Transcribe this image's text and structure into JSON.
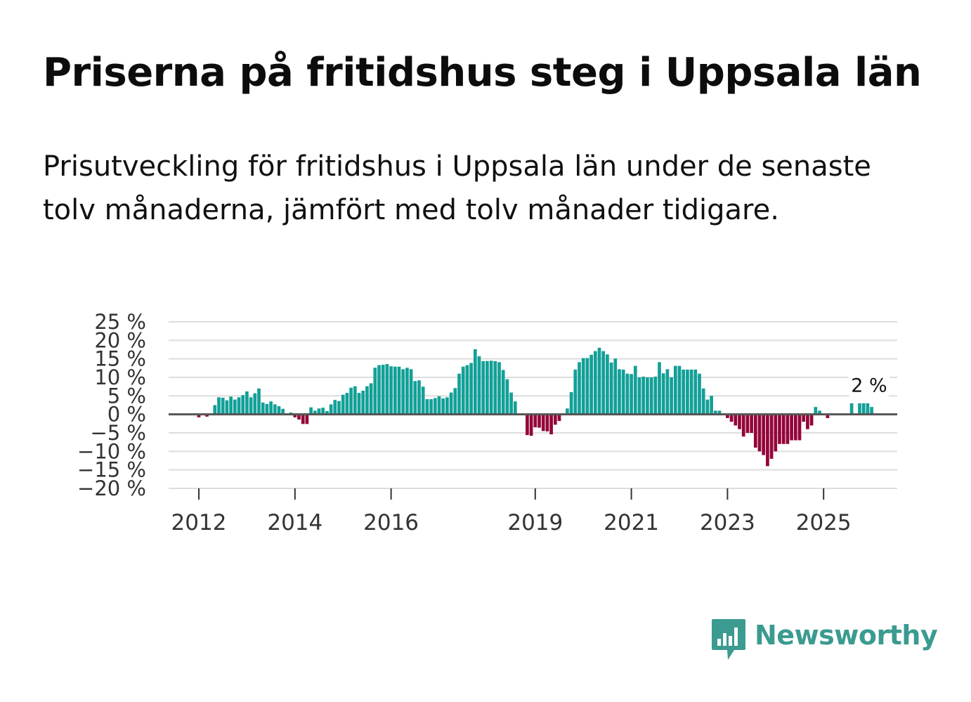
{
  "title": "Priserna på fritidshus steg i Uppsala län",
  "subtitle": "Prisutveckling för fritidshus i Uppsala län under de senaste tolv månaderna, jämfört med tolv månader tidigare.",
  "brand": {
    "name": "Newsworthy",
    "icon": "newsworthy-logo-icon",
    "color": "#3b9b90"
  },
  "colors": {
    "positive": "#12a097",
    "negative": "#93053a",
    "zero_line": "#555555",
    "grid": "#dddddd"
  },
  "chart_data": {
    "type": "bar",
    "title": "Priserna på fritidshus steg i Uppsala län",
    "xlabel": "",
    "ylabel": "",
    "ylim": [
      -20,
      25
    ],
    "y_ticks": [
      25,
      20,
      15,
      10,
      5,
      0,
      -5,
      -10,
      -15,
      -20
    ],
    "y_tick_labels": [
      "25 %",
      "20 %",
      "15 %",
      "10 %",
      "5 %",
      "0 %",
      "−5 %",
      "−10 %",
      "−15 %",
      "−20 %"
    ],
    "x_tick_labels": [
      {
        "label": "2012",
        "index": 9
      },
      {
        "label": "2014",
        "index": 33
      },
      {
        "label": "2016",
        "index": 57
      },
      {
        "label": "2019",
        "index": 93
      },
      {
        "label": "2021",
        "index": 117
      },
      {
        "label": "2023",
        "index": 141
      },
      {
        "label": "2025",
        "index": 165
      }
    ],
    "series": [
      {
        "name": "Prisutveckling",
        "start": "2011-01",
        "frequency": "monthly",
        "values": [
          null,
          null,
          null,
          null,
          null,
          null,
          null,
          null,
          0,
          -0.8,
          0,
          -0.6,
          0,
          2.5,
          4.6,
          4.5,
          3.8,
          4.8,
          4,
          4.6,
          5.2,
          6.2,
          4.6,
          5.7,
          7,
          3.2,
          2.8,
          3.5,
          2.7,
          2.2,
          1.5,
          0,
          0.5,
          -0.8,
          -1.4,
          -2.6,
          -2.6,
          1.9,
          1,
          1.6,
          1.8,
          0.9,
          2.7,
          3.9,
          3.6,
          5.3,
          5.8,
          7.2,
          7.6,
          5.8,
          6.4,
          7.6,
          8.4,
          12.6,
          13.3,
          13.4,
          13.6,
          13,
          12.9,
          12.9,
          12.2,
          12.6,
          12.2,
          9,
          9.2,
          7.5,
          4.1,
          4.1,
          4.4,
          4.9,
          4.3,
          4.6,
          5.9,
          7.1,
          11,
          12.9,
          13.3,
          13.9,
          17.6,
          15.7,
          14.4,
          14.4,
          14.5,
          14.4,
          14.1,
          12,
          9.5,
          5.9,
          3.5,
          0,
          0,
          -5.6,
          -5.8,
          -3.5,
          -3.6,
          -4.5,
          -4.6,
          -5.4,
          -2.8,
          -1.8,
          0,
          1.6,
          6,
          12.1,
          14.1,
          15.2,
          15.2,
          16.1,
          17.1,
          18,
          17.1,
          16.2,
          14,
          15.1,
          12.2,
          12.1,
          11,
          10.9,
          13.1,
          10,
          10.2,
          10,
          10,
          10.2,
          14.1,
          11.1,
          12.2,
          10,
          13.1,
          13.1,
          12.1,
          12.1,
          12.1,
          12.1,
          11,
          7,
          4,
          5,
          1,
          1,
          0,
          -1,
          -2,
          -3,
          -4,
          -6,
          -5,
          -5,
          -9,
          -10,
          -11,
          -14,
          -12,
          -10,
          -8,
          -8,
          -8,
          -7,
          -7,
          -7,
          -2,
          -4,
          -3,
          2,
          1,
          0,
          -1,
          0,
          0,
          0,
          0,
          0,
          3,
          0,
          3,
          3,
          3,
          2
        ]
      }
    ],
    "annotation": {
      "text": "2 %",
      "index": 176
    }
  }
}
